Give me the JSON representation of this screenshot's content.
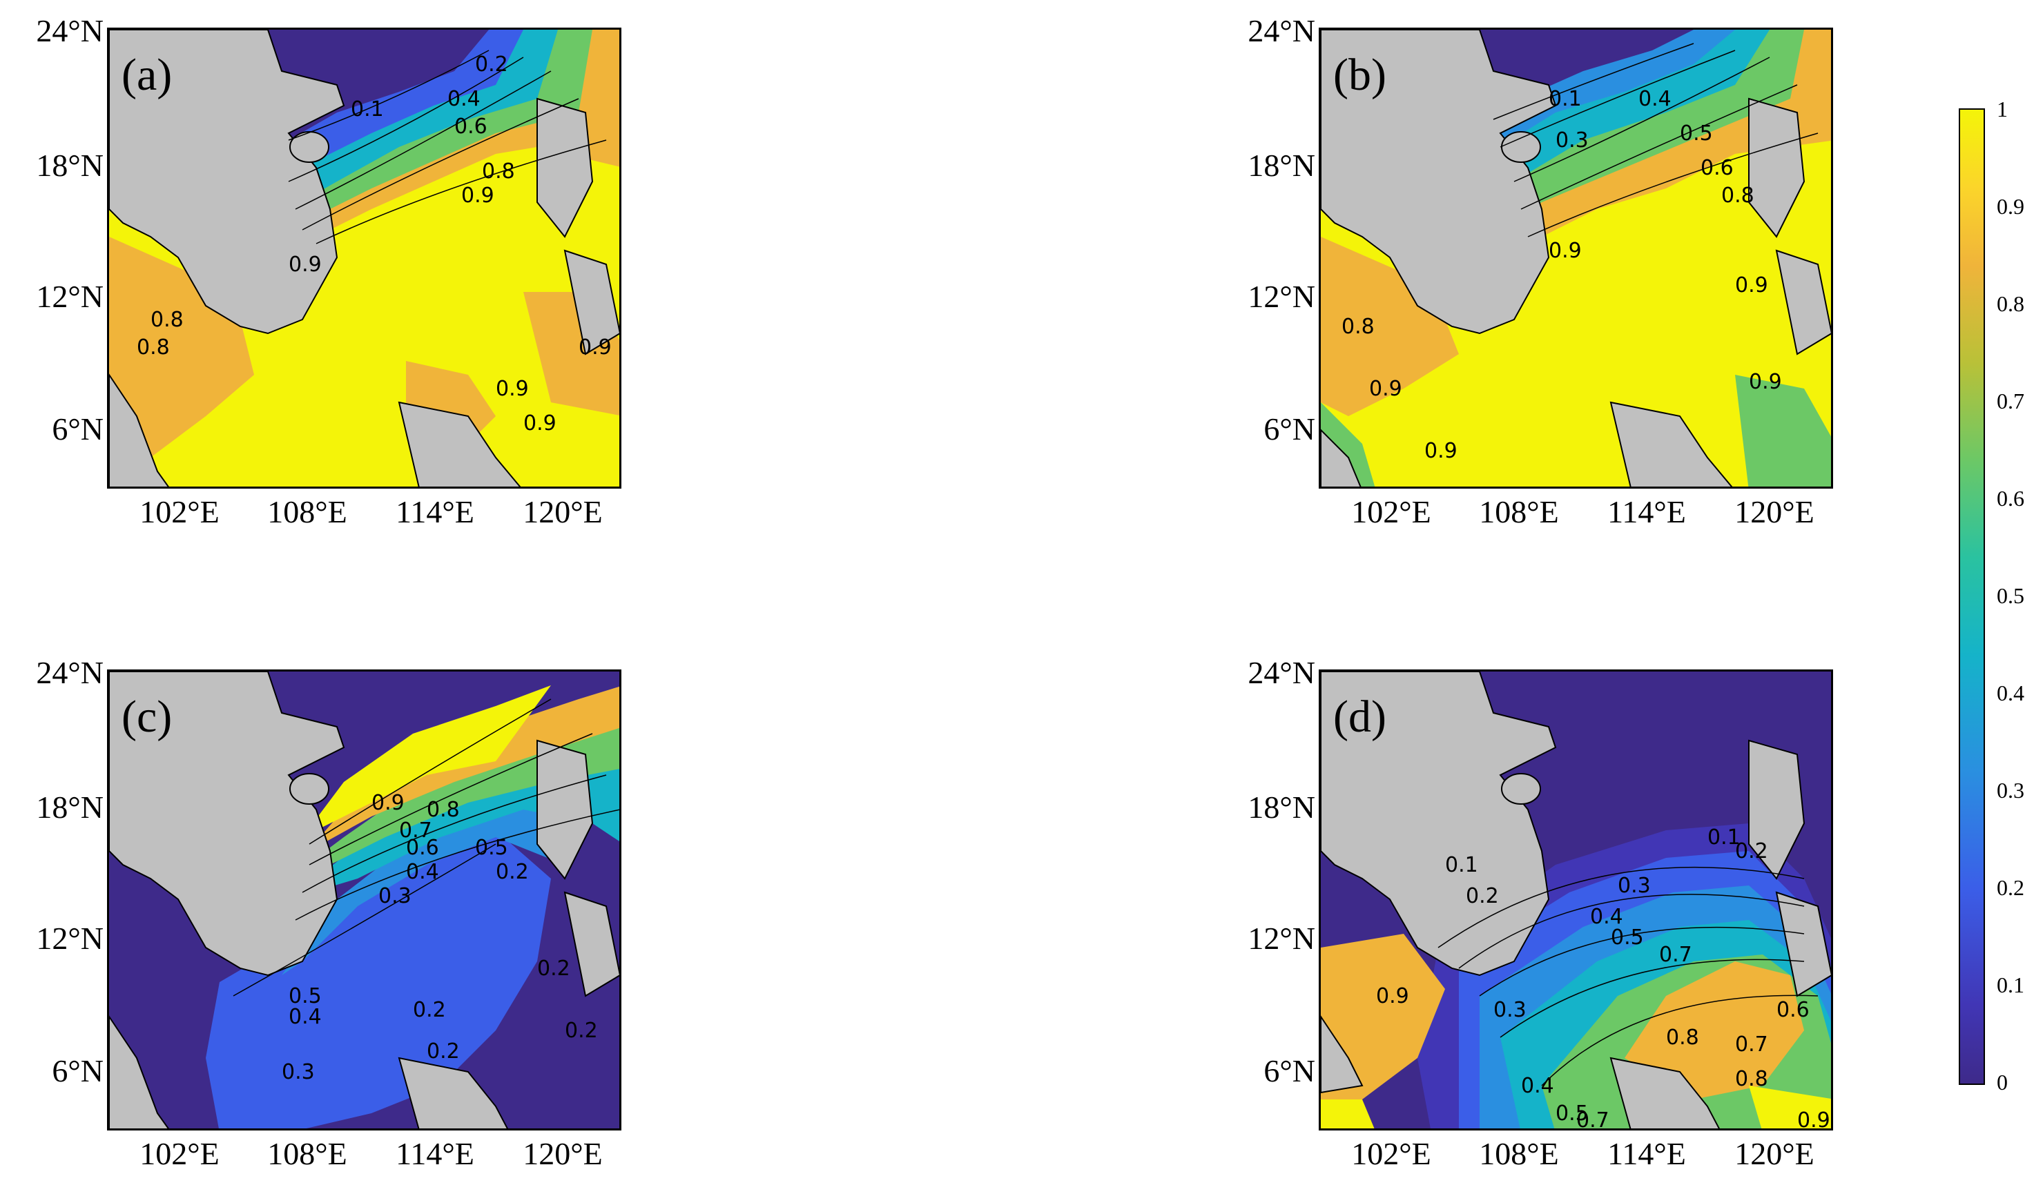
{
  "panels": [
    {
      "id": "a",
      "label": "(a)"
    },
    {
      "id": "b",
      "label": "(b)"
    },
    {
      "id": "c",
      "label": "(c)"
    },
    {
      "id": "d",
      "label": "(d)"
    }
  ],
  "lat_labels": [
    "24°N",
    "18°N",
    "12°N",
    "6°N"
  ],
  "lon_labels": [
    "102°E",
    "108°E",
    "114°E",
    "120°E"
  ],
  "colorbar": {
    "ticks": [
      "1",
      "0.9",
      "0.8",
      "0.7",
      "0.6",
      "0.5",
      "0.4",
      "0.3",
      "0.2",
      "0.1",
      "0"
    ],
    "colors": [
      "#3e2a8a",
      "#3b5ee8",
      "#15b3c9",
      "#6cc866",
      "#f0b43a",
      "#f4f409"
    ]
  },
  "contour_labels": {
    "a": [
      "0.2",
      "0.1",
      "0.4",
      "0.6",
      "0.8",
      "0.9",
      "0.9",
      "0.8",
      "0.8",
      "0.9",
      "0.9",
      "0.9"
    ],
    "b": [
      "0.1",
      "0.4",
      "0.3",
      "0.5",
      "0.6",
      "0.8",
      "0.9",
      "0.9",
      "0.8",
      "0.9",
      "0.9",
      "0.9"
    ],
    "c": [
      "0.9",
      "0.8",
      "0.7",
      "0.6",
      "0.5",
      "0.4",
      "0.3",
      "0.2",
      "0.5",
      "0.4",
      "0.3",
      "0.2",
      "0.2",
      "0.2",
      "0.2"
    ],
    "d": [
      "0.1",
      "0.2",
      "0.1",
      "0.2",
      "0.3",
      "0.4",
      "0.5",
      "0.7",
      "0.8",
      "0.6",
      "0.7",
      "0.8",
      "0.9",
      "0.3",
      "0.4",
      "0.5",
      "0.7",
      "0.9"
    ]
  }
}
